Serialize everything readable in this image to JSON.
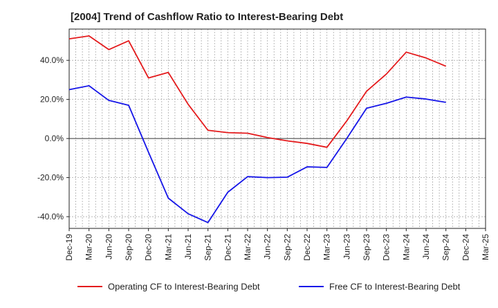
{
  "chart_data": {
    "type": "line",
    "title": "[2004]  Trend of Cashflow Ratio to Interest-Bearing Debt",
    "xlabel": "",
    "ylabel": "",
    "x": [
      "Dec-19",
      "Mar-20",
      "Jun-20",
      "Sep-20",
      "Dec-20",
      "Mar-21",
      "Jun-21",
      "Sep-21",
      "Dec-21",
      "Mar-22",
      "Jun-22",
      "Sep-22",
      "Dec-22",
      "Mar-23",
      "Jun-23",
      "Sep-23",
      "Dec-23",
      "Mar-24",
      "Jun-24",
      "Sep-24",
      "Dec-24",
      "Mar-25"
    ],
    "ylim": [
      -46,
      56
    ],
    "yticks": [
      -40,
      -20,
      0,
      20,
      40
    ],
    "ytick_labels": [
      "-40.0%",
      "-20.0%",
      "0.0%",
      "20.0%",
      "40.0%"
    ],
    "grid": true,
    "legend_position": "bottom",
    "series": [
      {
        "name": "Operating CF to Interest-Bearing Debt",
        "color": "#e41a1c",
        "values": [
          51.0,
          52.5,
          45.5,
          50.0,
          31.0,
          33.8,
          17.5,
          4.2,
          3.0,
          2.7,
          0.5,
          -1.2,
          -2.5,
          -4.5,
          9.0,
          24.2,
          33.0,
          44.2,
          41.2,
          37.0,
          null,
          null
        ]
      },
      {
        "name": "Free CF to Interest-Bearing Debt",
        "color": "#1515e8",
        "values": [
          25.0,
          27.0,
          19.5,
          17.0,
          -7.0,
          -30.5,
          -38.5,
          -43.0,
          -27.5,
          -19.5,
          -20.0,
          -19.8,
          -14.5,
          -14.8,
          0.0,
          15.5,
          18.0,
          21.2,
          20.2,
          18.5,
          null,
          null
        ]
      }
    ]
  }
}
